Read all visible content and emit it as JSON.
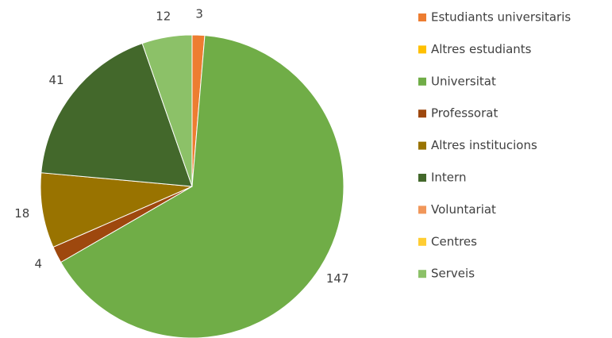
{
  "chart_data": {
    "type": "pie",
    "categories": [
      "Estudiants universitaris",
      "Altres estudiants",
      "Universitat",
      "Professorat",
      "Altres institucions",
      "Intern",
      "Voluntariat",
      "Centres",
      "Serveis"
    ],
    "values": [
      3,
      0,
      147,
      4,
      18,
      41,
      0,
      0,
      12
    ],
    "colors": [
      "#ED7D31",
      "#FFC000",
      "#70AD47",
      "#9E480E",
      "#997300",
      "#43682B",
      "#F1975A",
      "#FFCD33",
      "#8CC168"
    ],
    "legend": "right"
  }
}
